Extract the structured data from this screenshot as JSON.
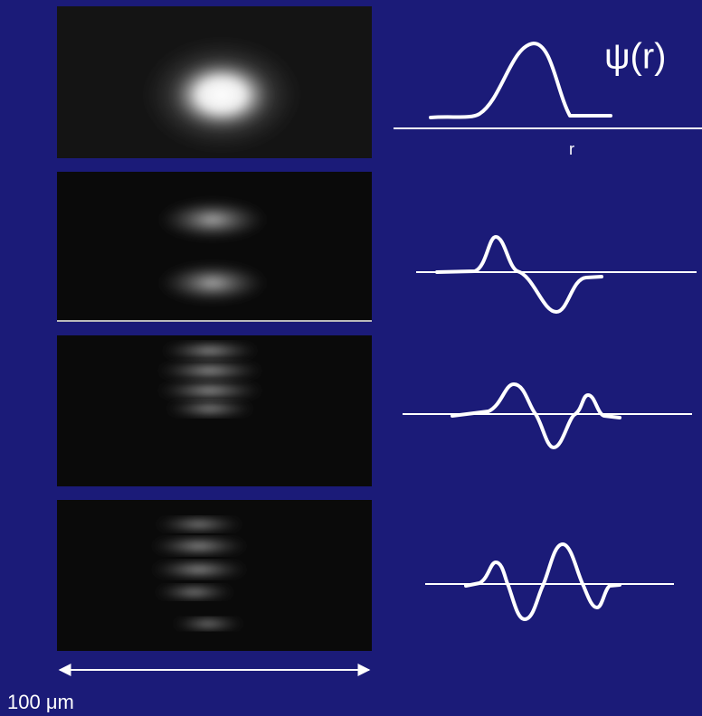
{
  "label": "ψ(r)",
  "axis_label": "r",
  "scale_bar": "100 μm"
}
